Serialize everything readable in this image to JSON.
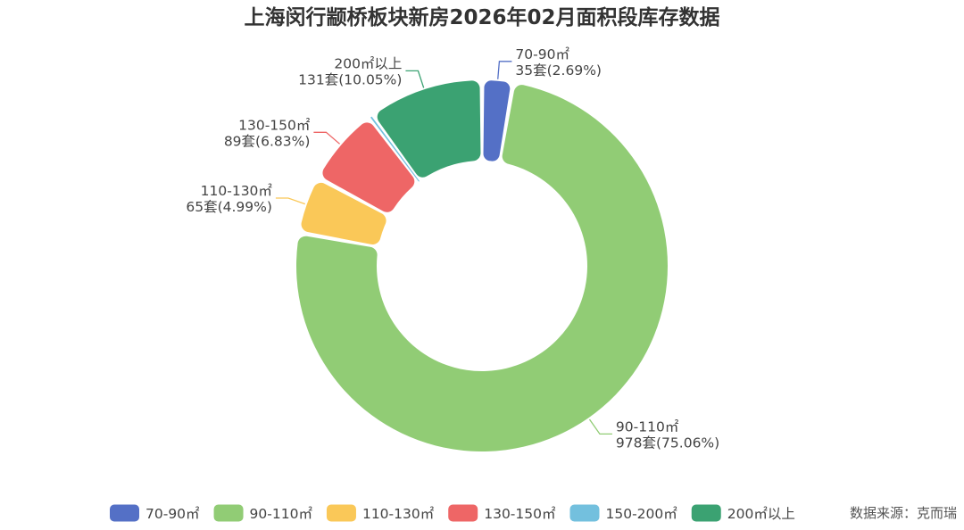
{
  "chart_data": {
    "type": "pie",
    "title": "上海闵行颛桥板块新房2026年02月面积段库存数据",
    "unit": "套",
    "categories": [
      "70-90㎡",
      "90-110㎡",
      "110-130㎡",
      "130-150㎡",
      "150-200㎡",
      "200㎡以上"
    ],
    "values": [
      35,
      978,
      65,
      89,
      3,
      131
    ],
    "percents": [
      "2.69%",
      "75.06%",
      "4.99%",
      "6.83%",
      "0.23%",
      "10.05%"
    ],
    "colors": [
      "#5470c6",
      "#91cc75",
      "#fac858",
      "#ee6666",
      "#73c0de",
      "#3ba272"
    ],
    "labels": [
      {
        "line1": "70-90㎡",
        "line2": "35套(2.69%)"
      },
      {
        "line1": "90-110㎡",
        "line2": "978套(75.06%)"
      },
      {
        "line1": "110-130㎡",
        "line2": "65套(4.99%)"
      },
      {
        "line1": "130-150㎡",
        "line2": "89套(6.83%)"
      },
      null,
      {
        "line1": "200㎡以上",
        "line2": "131套(10.05%)"
      }
    ],
    "legend_position": "bottom"
  },
  "source": "数据来源：克而瑞"
}
